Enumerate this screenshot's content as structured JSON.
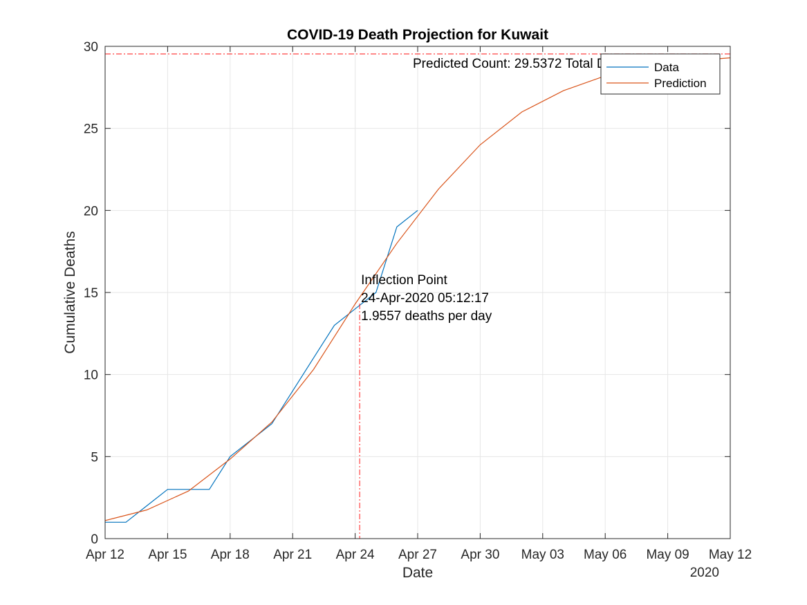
{
  "chart_data": {
    "type": "line",
    "title": "COVID-19 Death Projection for Kuwait",
    "xlabel": "Date",
    "ylabel": "Cumulative Deaths",
    "year_label": "2020",
    "xlim": [
      "2020-04-12",
      "2020-05-12"
    ],
    "ylim": [
      0,
      30
    ],
    "x_ticks": [
      {
        "date": "2020-04-12",
        "label": "Apr 12"
      },
      {
        "date": "2020-04-15",
        "label": "Apr 15"
      },
      {
        "date": "2020-04-18",
        "label": "Apr 18"
      },
      {
        "date": "2020-04-21",
        "label": "Apr 21"
      },
      {
        "date": "2020-04-24",
        "label": "Apr 24"
      },
      {
        "date": "2020-04-27",
        "label": "Apr 27"
      },
      {
        "date": "2020-04-30",
        "label": "Apr 30"
      },
      {
        "date": "2020-05-03",
        "label": "May 03"
      },
      {
        "date": "2020-05-06",
        "label": "May 06"
      },
      {
        "date": "2020-05-09",
        "label": "May 09"
      },
      {
        "date": "2020-05-12",
        "label": "May 12"
      }
    ],
    "y_ticks": [
      0,
      5,
      10,
      15,
      20,
      25,
      30
    ],
    "grid": true,
    "legend_position": "top-right",
    "colors": {
      "data": "#0072BD",
      "prediction": "#D95319",
      "reference": "#FF0000",
      "grid": "#E6E6E6",
      "axis": "#262626"
    },
    "series": [
      {
        "name": "Data",
        "color": "#0072BD",
        "points": [
          [
            "2020-04-12",
            1
          ],
          [
            "2020-04-13",
            1
          ],
          [
            "2020-04-14",
            2
          ],
          [
            "2020-04-15",
            3
          ],
          [
            "2020-04-16",
            3
          ],
          [
            "2020-04-17",
            3
          ],
          [
            "2020-04-18",
            5
          ],
          [
            "2020-04-19",
            6
          ],
          [
            "2020-04-20",
            7
          ],
          [
            "2020-04-21",
            9
          ],
          [
            "2020-04-22",
            11
          ],
          [
            "2020-04-23",
            13
          ],
          [
            "2020-04-24",
            14
          ],
          [
            "2020-04-25",
            15
          ],
          [
            "2020-04-26",
            19
          ],
          [
            "2020-04-27",
            20
          ]
        ]
      },
      {
        "name": "Prediction",
        "color": "#D95319",
        "points": [
          [
            "2020-04-12",
            1.1
          ],
          [
            "2020-04-14",
            1.75
          ],
          [
            "2020-04-16",
            2.9
          ],
          [
            "2020-04-18",
            4.85
          ],
          [
            "2020-04-20",
            7.1
          ],
          [
            "2020-04-22",
            10.3
          ],
          [
            "2020-04-24",
            14.3
          ],
          [
            "2020-04-26",
            18.0
          ],
          [
            "2020-04-28",
            21.3
          ],
          [
            "2020-04-30",
            24.0
          ],
          [
            "2020-05-02",
            26.0
          ],
          [
            "2020-05-04",
            27.3
          ],
          [
            "2020-05-06",
            28.2
          ],
          [
            "2020-05-08",
            28.8
          ],
          [
            "2020-05-10",
            29.1
          ],
          [
            "2020-05-12",
            29.3
          ]
        ]
      }
    ],
    "reference_lines": {
      "predicted_total": 29.5372,
      "inflection_date": "2020-04-24T05:12:17"
    },
    "annotations": {
      "predicted_count_text": "Predicted Count: 29.5372 Total Deaths",
      "inflection_lines": [
        "Inflection Point",
        "24-Apr-2020 05:12:17",
        "1.9557 deaths per day"
      ]
    }
  }
}
